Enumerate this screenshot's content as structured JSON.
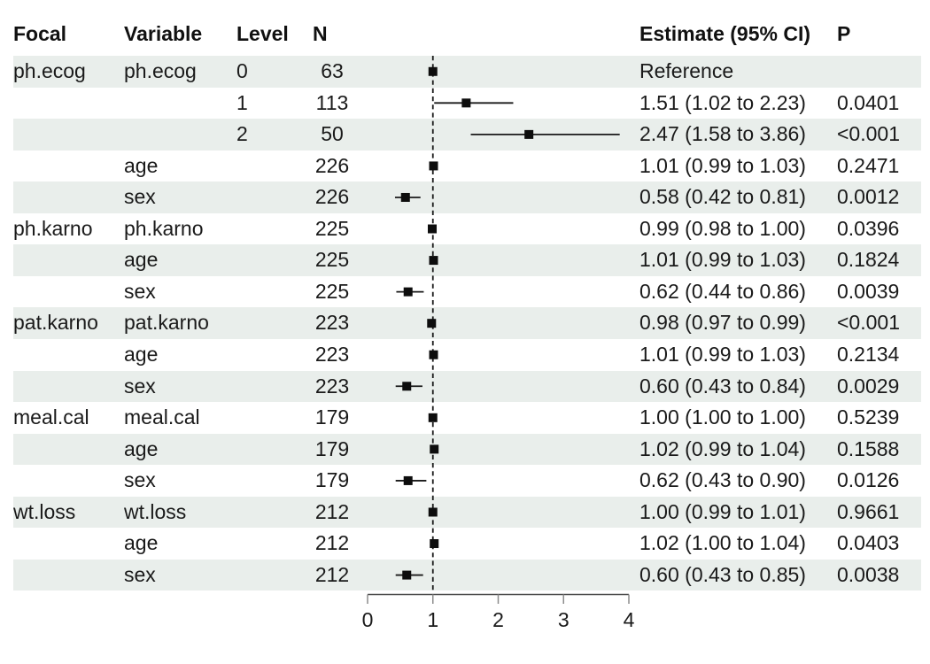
{
  "colors": {
    "stripe": "#E9EEEB",
    "text": "#1A1A1A",
    "marker": "#0D0D0D",
    "ci_line": "#1A1A1A",
    "reference_line": "#1A1A1A",
    "axis_line": "#4D4D4D",
    "axis_tick": "#8C8C8C"
  },
  "header": {
    "focal": "Focal",
    "variable": "Variable",
    "level": "Level",
    "n": "N",
    "estimate": "Estimate (95% CI)",
    "p": "P"
  },
  "chart_data": {
    "type": "forest",
    "title": "",
    "xlabel": "",
    "xlim": [
      0,
      4
    ],
    "x_ticks": [
      0,
      1,
      2,
      3,
      4
    ],
    "reference_line_x": 1,
    "legend": "none",
    "rows": [
      {
        "focal": "ph.ecog",
        "variable": "ph.ecog",
        "level": "0",
        "n": "63",
        "estimate_label": "Reference",
        "p": "",
        "est": 1.0,
        "lo": null,
        "hi": null,
        "reference": true
      },
      {
        "focal": "",
        "variable": "",
        "level": "1",
        "n": "113",
        "estimate_label": "1.51 (1.02 to 2.23)",
        "p": "0.0401",
        "est": 1.51,
        "lo": 1.02,
        "hi": 2.23,
        "reference": false
      },
      {
        "focal": "",
        "variable": "",
        "level": "2",
        "n": "50",
        "estimate_label": "2.47 (1.58 to 3.86)",
        "p": "<0.001",
        "est": 2.47,
        "lo": 1.58,
        "hi": 3.86,
        "reference": false
      },
      {
        "focal": "",
        "variable": "age",
        "level": "",
        "n": "226",
        "estimate_label": "1.01 (0.99 to 1.03)",
        "p": "0.2471",
        "est": 1.01,
        "lo": 0.99,
        "hi": 1.03,
        "reference": false
      },
      {
        "focal": "",
        "variable": "sex",
        "level": "",
        "n": "226",
        "estimate_label": "0.58 (0.42 to 0.81)",
        "p": "0.0012",
        "est": 0.58,
        "lo": 0.42,
        "hi": 0.81,
        "reference": false
      },
      {
        "focal": "ph.karno",
        "variable": "ph.karno",
        "level": "",
        "n": "225",
        "estimate_label": "0.99 (0.98 to 1.00)",
        "p": "0.0396",
        "est": 0.99,
        "lo": 0.98,
        "hi": 1.0,
        "reference": false
      },
      {
        "focal": "",
        "variable": "age",
        "level": "",
        "n": "225",
        "estimate_label": "1.01 (0.99 to 1.03)",
        "p": "0.1824",
        "est": 1.01,
        "lo": 0.99,
        "hi": 1.03,
        "reference": false
      },
      {
        "focal": "",
        "variable": "sex",
        "level": "",
        "n": "225",
        "estimate_label": "0.62 (0.44 to 0.86)",
        "p": "0.0039",
        "est": 0.62,
        "lo": 0.44,
        "hi": 0.86,
        "reference": false
      },
      {
        "focal": "pat.karno",
        "variable": "pat.karno",
        "level": "",
        "n": "223",
        "estimate_label": "0.98 (0.97 to 0.99)",
        "p": "<0.001",
        "est": 0.98,
        "lo": 0.97,
        "hi": 0.99,
        "reference": false
      },
      {
        "focal": "",
        "variable": "age",
        "level": "",
        "n": "223",
        "estimate_label": "1.01 (0.99 to 1.03)",
        "p": "0.2134",
        "est": 1.01,
        "lo": 0.99,
        "hi": 1.03,
        "reference": false
      },
      {
        "focal": "",
        "variable": "sex",
        "level": "",
        "n": "223",
        "estimate_label": "0.60 (0.43 to 0.84)",
        "p": "0.0029",
        "est": 0.6,
        "lo": 0.43,
        "hi": 0.84,
        "reference": false
      },
      {
        "focal": "meal.cal",
        "variable": "meal.cal",
        "level": "",
        "n": "179",
        "estimate_label": "1.00 (1.00 to 1.00)",
        "p": "0.5239",
        "est": 1.0,
        "lo": 1.0,
        "hi": 1.0,
        "reference": false
      },
      {
        "focal": "",
        "variable": "age",
        "level": "",
        "n": "179",
        "estimate_label": "1.02 (0.99 to 1.04)",
        "p": "0.1588",
        "est": 1.02,
        "lo": 0.99,
        "hi": 1.04,
        "reference": false
      },
      {
        "focal": "",
        "variable": "sex",
        "level": "",
        "n": "179",
        "estimate_label": "0.62 (0.43 to 0.90)",
        "p": "0.0126",
        "est": 0.62,
        "lo": 0.43,
        "hi": 0.9,
        "reference": false
      },
      {
        "focal": "wt.loss",
        "variable": "wt.loss",
        "level": "",
        "n": "212",
        "estimate_label": "1.00 (0.99 to 1.01)",
        "p": "0.9661",
        "est": 1.0,
        "lo": 0.99,
        "hi": 1.01,
        "reference": false
      },
      {
        "focal": "",
        "variable": "age",
        "level": "",
        "n": "212",
        "estimate_label": "1.02 (1.00 to 1.04)",
        "p": "0.0403",
        "est": 1.02,
        "lo": 1.0,
        "hi": 1.04,
        "reference": false
      },
      {
        "focal": "",
        "variable": "sex",
        "level": "",
        "n": "212",
        "estimate_label": "0.60 (0.43 to 0.85)",
        "p": "0.0038",
        "est": 0.6,
        "lo": 0.43,
        "hi": 0.85,
        "reference": false
      }
    ]
  }
}
